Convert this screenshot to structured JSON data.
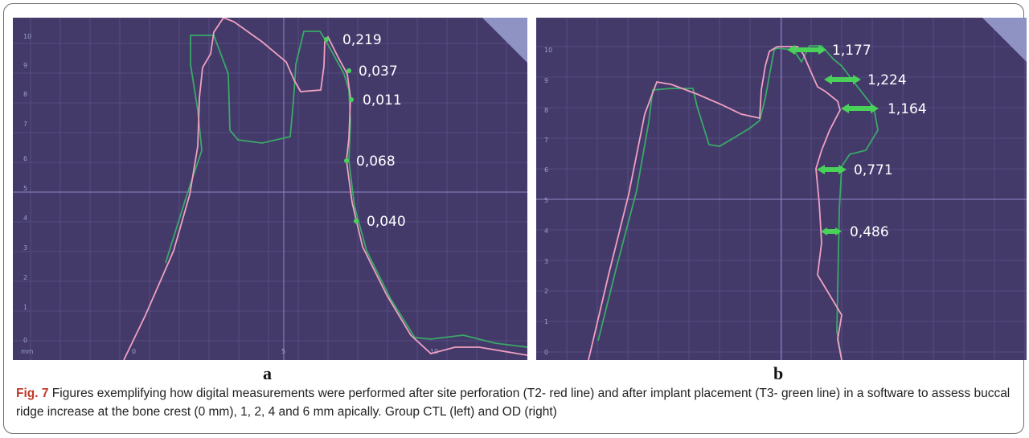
{
  "panel_a": {
    "label": "a",
    "y_ticks": [
      "10",
      "9",
      "8",
      "7",
      "6",
      "5",
      "4",
      "3",
      "2",
      "1",
      "0"
    ],
    "x_ticks": [
      "0",
      "5",
      "10"
    ],
    "unit": "mm",
    "measurements": [
      "0,219",
      "0,037",
      "0,011",
      "0,068",
      "0,040"
    ]
  },
  "panel_b": {
    "label": "b",
    "y_ticks": [
      "10",
      "9",
      "8",
      "7",
      "6",
      "5",
      "4",
      "3",
      "2",
      "1",
      "0"
    ],
    "measurements": [
      "1,177",
      "1,224",
      "1,164",
      "0,771",
      "0,486"
    ]
  },
  "caption": {
    "fig_label": "Fig. 7",
    "text": "Figures exemplifying how digital measurements were performed after site perforation (T2- red line) and after implant placement (T3- green line) in a software to assess buccal ridge increase at the bone crest (0 mm), 1, 2, 4 and 6 mm apically. Group CTL (left) and OD (right)"
  },
  "colors": {
    "background": "#433a6a",
    "grid": "#5a5288",
    "axis": "#8e86c4",
    "t2_line": "#f0a0c0",
    "t3_line": "#3aa868",
    "marker": "#49d15a"
  }
}
